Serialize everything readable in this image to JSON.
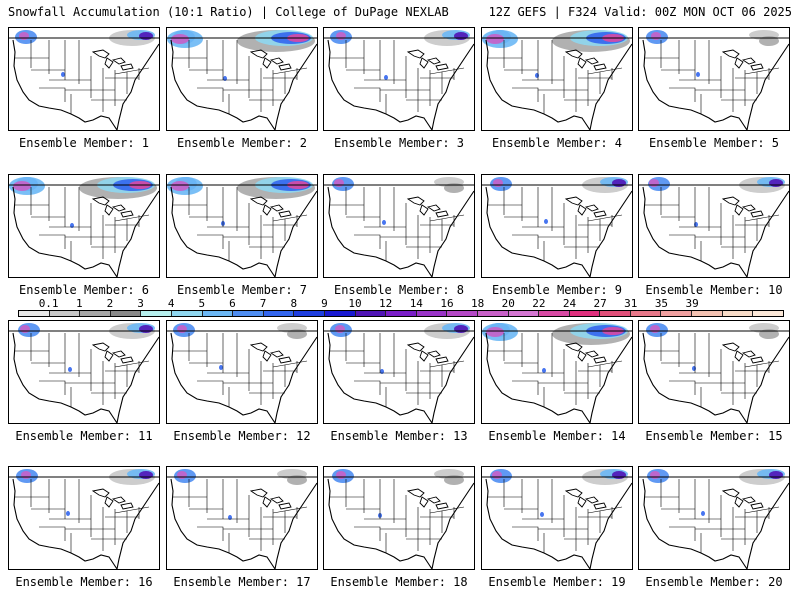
{
  "header": {
    "title": "Snowfall Accumulation (10:1 Ratio) | College of DuPage NEXLAB",
    "run_info": "12Z GEFS | F324 Valid: 00Z MON OCT 06 2025"
  },
  "caption_prefix": "Ensemble Member:",
  "members": [
    {
      "label": "Ensemble Member: 1",
      "cover": "med"
    },
    {
      "label": "Ensemble Member: 2",
      "cover": "heavy"
    },
    {
      "label": "Ensemble Member: 3",
      "cover": "med"
    },
    {
      "label": "Ensemble Member: 4",
      "cover": "heavy"
    },
    {
      "label": "Ensemble Member: 5",
      "cover": "light"
    },
    {
      "label": "Ensemble Member: 6",
      "cover": "heavy"
    },
    {
      "label": "Ensemble Member: 7",
      "cover": "heavy"
    },
    {
      "label": "Ensemble Member: 8",
      "cover": "light"
    },
    {
      "label": "Ensemble Member: 9",
      "cover": "med"
    },
    {
      "label": "Ensemble Member: 10",
      "cover": "med"
    },
    {
      "label": "Ensemble Member: 11",
      "cover": "med"
    },
    {
      "label": "Ensemble Member: 12",
      "cover": "light"
    },
    {
      "label": "Ensemble Member: 13",
      "cover": "med"
    },
    {
      "label": "Ensemble Member: 14",
      "cover": "heavy"
    },
    {
      "label": "Ensemble Member: 15",
      "cover": "light"
    },
    {
      "label": "Ensemble Member: 16",
      "cover": "med"
    },
    {
      "label": "Ensemble Member: 17",
      "cover": "light"
    },
    {
      "label": "Ensemble Member: 18",
      "cover": "light"
    },
    {
      "label": "Ensemble Member: 19",
      "cover": "med"
    },
    {
      "label": "Ensemble Member: 20",
      "cover": "med"
    }
  ],
  "legend": {
    "labels": [
      "0.1",
      "1",
      "2",
      "3",
      "4",
      "5",
      "6",
      "7",
      "8",
      "9",
      "10",
      "12",
      "14",
      "16",
      "18",
      "20",
      "22",
      "24",
      "27",
      "31",
      "35",
      "39"
    ],
    "colors": [
      "#e8e8e8",
      "#c8c8c8",
      "#a8a8a8",
      "#8a8a8a",
      "#b6f0ee",
      "#8fd7f0",
      "#6cb8f5",
      "#4f8ef2",
      "#3366ee",
      "#1f3fe0",
      "#1a1ad2",
      "#5014b6",
      "#7a1ec8",
      "#9a34c8",
      "#b448c6",
      "#c860c8",
      "#d476d2",
      "#d84aa4",
      "#e0307e",
      "#e2507a",
      "#e8788a",
      "#f0a0a0",
      "#f4c2b2",
      "#f8dcc8",
      "#fce8d8"
    ]
  }
}
